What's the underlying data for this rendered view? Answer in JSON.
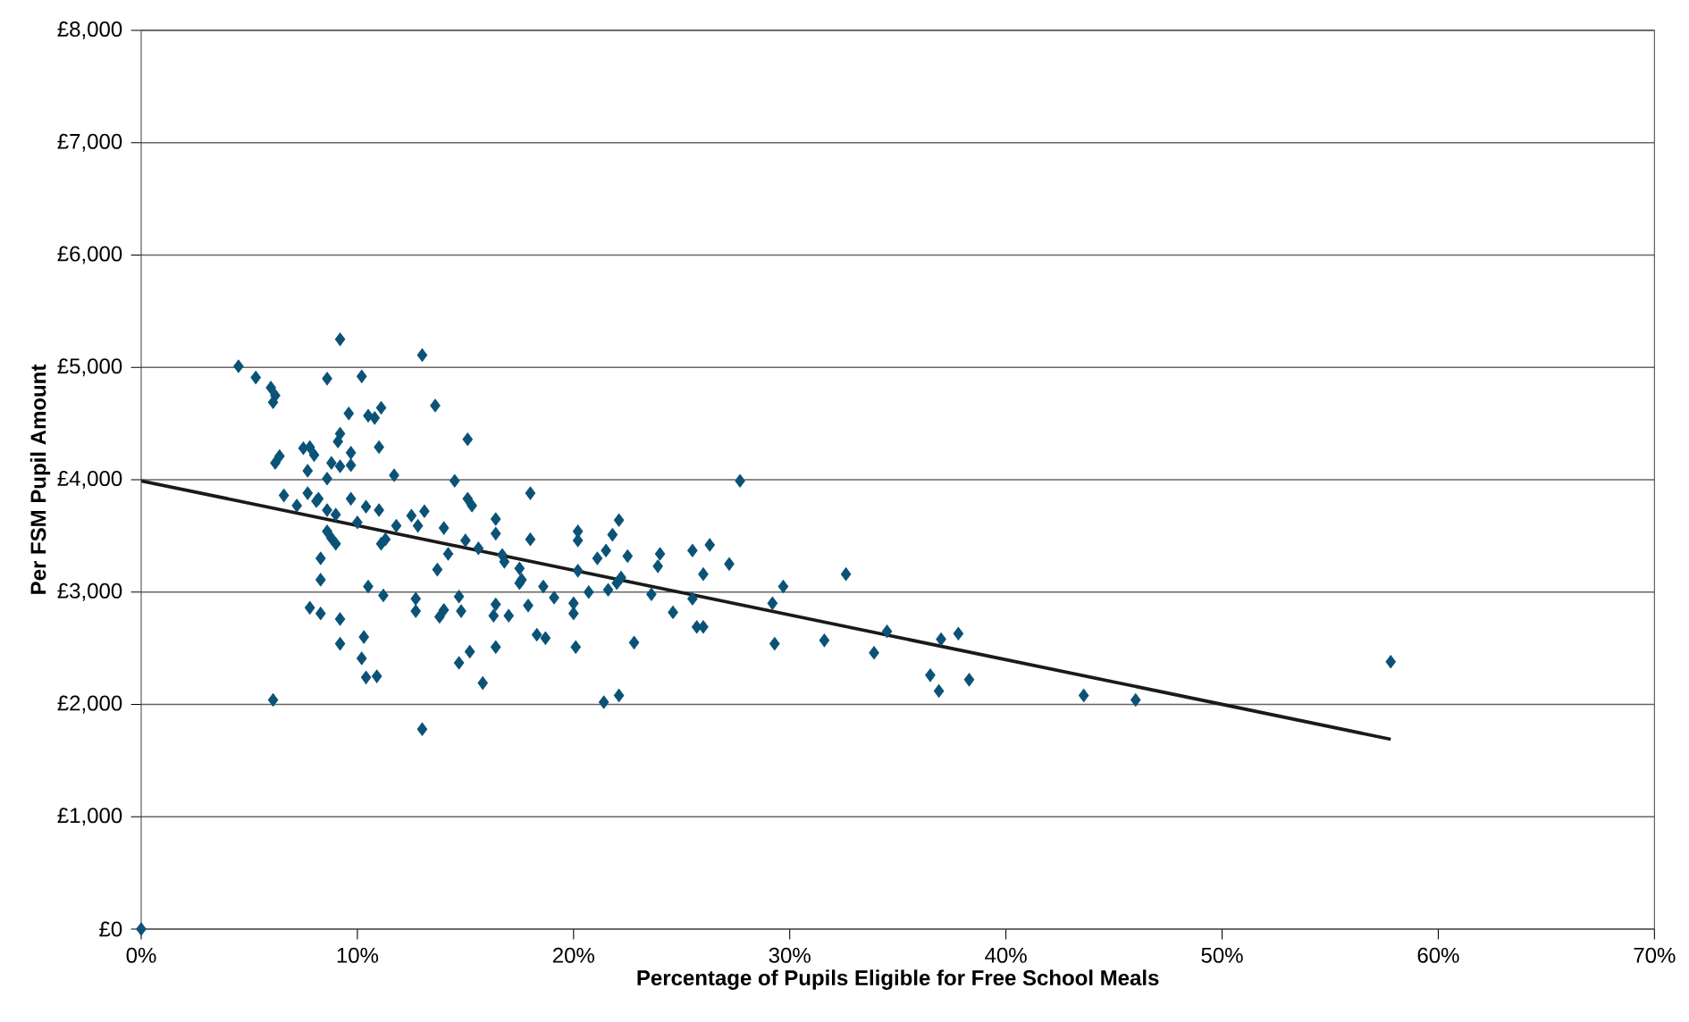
{
  "chart_data": {
    "type": "scatter",
    "xlabel": "Percentage of Pupils Eligible for Free School Meals",
    "ylabel": "Per FSM Pupil Amount",
    "xlim": [
      0,
      70
    ],
    "xticks": [
      {
        "value": 0,
        "label": "0%"
      },
      {
        "value": 10,
        "label": "10%"
      },
      {
        "value": 20,
        "label": "20%"
      },
      {
        "value": 30,
        "label": "30%"
      },
      {
        "value": 40,
        "label": "40%"
      },
      {
        "value": 50,
        "label": "50%"
      },
      {
        "value": 60,
        "label": "60%"
      },
      {
        "value": 70,
        "label": "70%"
      }
    ],
    "ylim": [
      0,
      8000
    ],
    "yticks": [
      {
        "value": 0,
        "label": "£0"
      },
      {
        "value": 1000,
        "label": "£1,000"
      },
      {
        "value": 2000,
        "label": "£2,000"
      },
      {
        "value": 3000,
        "label": "£3,000"
      },
      {
        "value": 4000,
        "label": "£4,000"
      },
      {
        "value": 5000,
        "label": "£5,000"
      },
      {
        "value": 6000,
        "label": "£6,000"
      },
      {
        "value": 7000,
        "label": "£7,000"
      },
      {
        "value": 8000,
        "label": "£8,000"
      }
    ],
    "grid": "y",
    "series": [
      {
        "color": "#0b5277",
        "marker": "diamond",
        "x": [
          0,
          4.5,
          5.3,
          6.0,
          6.2,
          6.1,
          8.6,
          9.2,
          10.2,
          13.0,
          13.6,
          9.6,
          10.5,
          10.8,
          11.1,
          9.2,
          9.1,
          9.7,
          11.0,
          15.1,
          6.2,
          6.4,
          7.5,
          7.8,
          8.0,
          7.7,
          8.8,
          9.2,
          9.7,
          8.6,
          11.7,
          14.5,
          6.6,
          7.2,
          7.7,
          8.2,
          8.1,
          9.7,
          10.4,
          11.0,
          15.1,
          15.3,
          8.6,
          9.0,
          10.0,
          12.5,
          13.1,
          12.8,
          14.0,
          11.8,
          16.4,
          16.4,
          8.6,
          8.8,
          9.0,
          11.1,
          11.3,
          15.0,
          14.2,
          15.6,
          13.7,
          8.3,
          8.3,
          10.5,
          11.2,
          12.7,
          12.7,
          13.8,
          14.0,
          14.7,
          14.8,
          7.8,
          8.3,
          9.2,
          9.2,
          10.3,
          10.2,
          10.4,
          10.9,
          14.7,
          15.2,
          15.8,
          16.3,
          16.4,
          6.1,
          13.0,
          18.0,
          16.7,
          16.8,
          17.5,
          17.5,
          17.6,
          18.0,
          18.6,
          19.1,
          16.4,
          17.0,
          17.9,
          18.3,
          18.7,
          20.0,
          20.0,
          20.1,
          20.2,
          20.2,
          20.2,
          20.7,
          21.1,
          21.5,
          21.6,
          21.8,
          22.1,
          22.0,
          22.2,
          22.5,
          21.4,
          22.1,
          22.8,
          23.6,
          23.9,
          24.0,
          24.6,
          25.5,
          25.5,
          25.7,
          26.0,
          26.0,
          26.3,
          27.2,
          27.7,
          29.2,
          29.3,
          29.7,
          32.6,
          31.6,
          33.9,
          34.5,
          36.5,
          36.9,
          37.0,
          37.8,
          38.3,
          43.6,
          46.0,
          57.8
        ],
        "values": [
          0,
          5010,
          4910,
          4820,
          4750,
          4690,
          4900,
          5250,
          4920,
          5110,
          4660,
          4590,
          4570,
          4550,
          4640,
          4410,
          4340,
          4240,
          4290,
          4360,
          4150,
          4210,
          4280,
          4290,
          4220,
          4080,
          4150,
          4120,
          4130,
          4010,
          4040,
          3990,
          3860,
          3770,
          3880,
          3830,
          3810,
          3830,
          3760,
          3730,
          3830,
          3770,
          3730,
          3690,
          3620,
          3680,
          3720,
          3590,
          3570,
          3590,
          3650,
          3520,
          3540,
          3480,
          3430,
          3430,
          3470,
          3460,
          3340,
          3390,
          3200,
          3300,
          3110,
          3050,
          2970,
          2940,
          2830,
          2780,
          2840,
          2960,
          2830,
          2860,
          2810,
          2760,
          2540,
          2600,
          2410,
          2240,
          2250,
          2370,
          2470,
          2190,
          2790,
          2510,
          2040,
          1780,
          3880,
          3330,
          3270,
          3210,
          3080,
          3110,
          3470,
          3050,
          2950,
          2890,
          2790,
          2880,
          2620,
          2590,
          2900,
          2810,
          2510,
          3540,
          3460,
          3190,
          3000,
          3300,
          3370,
          3020,
          3510,
          3640,
          3080,
          3130,
          3320,
          2020,
          2080,
          2550,
          2980,
          3230,
          3340,
          2820,
          3370,
          2940,
          2690,
          2690,
          3160,
          3420,
          3250,
          3990,
          2900,
          2540,
          3050,
          3160,
          2570,
          2460,
          2650,
          2260,
          2120,
          2580,
          2630,
          2220,
          2080,
          2040,
          2380
        ]
      },
      {
        "type": "line",
        "color": "#1a1a1a",
        "marker": "none",
        "line_style": "solid",
        "x": [
          0,
          57.8
        ],
        "values": [
          3990,
          1690
        ]
      }
    ]
  }
}
